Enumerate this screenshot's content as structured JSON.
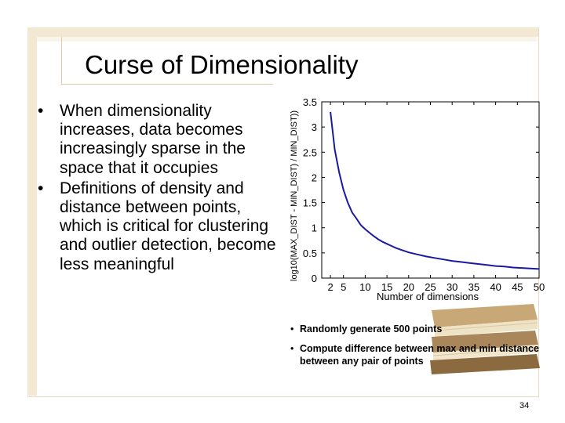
{
  "slide": {
    "title": "Curse of Dimensionality",
    "bullets": [
      "When dimensionality increases, data becomes increasingly sparse in the space that it occupies",
      "Definitions of density and distance between points, which is critical for clustering and outlier detection, become less meaningful"
    ],
    "bullet_glyph": "•",
    "notes": [
      "Randomly generate 500 points",
      "Compute difference between max and min distance between any pair of points"
    ],
    "note_glyph": "•",
    "page_number": "34"
  },
  "chart_data": {
    "type": "line",
    "xlabel": "Number of dimensions",
    "ylabel": "log10(MAX_DIST - MIN_DIST) / MIN_DIST))",
    "xlim": [
      0,
      50
    ],
    "ylim": [
      0,
      3.5
    ],
    "x_ticks": [
      2,
      5,
      10,
      15,
      20,
      25,
      30,
      35,
      40,
      45,
      50
    ],
    "y_ticks": [
      0,
      0.5,
      1,
      1.5,
      2,
      2.5,
      3,
      3.5
    ],
    "grid": false,
    "series": [
      {
        "color": "#1a1aa0",
        "x": [
          2,
          3,
          4,
          5,
          6,
          7,
          8,
          9,
          10,
          11,
          12,
          13,
          14,
          15,
          16,
          17,
          18,
          19,
          20,
          22,
          24,
          26,
          28,
          30,
          32,
          34,
          36,
          38,
          40,
          42,
          44,
          46,
          48,
          50
        ],
        "y": [
          3.3,
          2.55,
          2.1,
          1.75,
          1.5,
          1.3,
          1.18,
          1.05,
          0.97,
          0.9,
          0.83,
          0.77,
          0.72,
          0.68,
          0.64,
          0.6,
          0.57,
          0.54,
          0.51,
          0.47,
          0.43,
          0.4,
          0.37,
          0.34,
          0.32,
          0.3,
          0.28,
          0.26,
          0.24,
          0.23,
          0.21,
          0.2,
          0.19,
          0.18
        ]
      }
    ]
  }
}
